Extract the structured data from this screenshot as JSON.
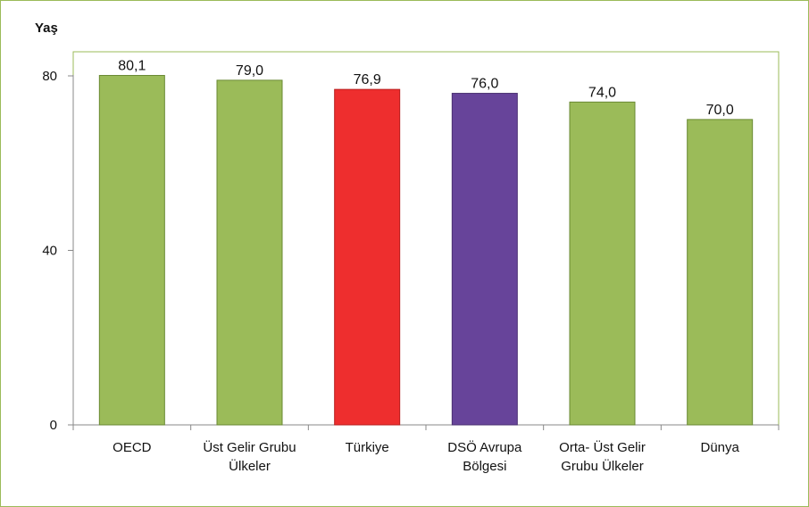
{
  "chart_data": {
    "type": "bar",
    "ylabel": "Yaş",
    "ylim": [
      0,
      80
    ],
    "yticks": [
      "0",
      "40",
      "80"
    ],
    "categories": [
      [
        "OECD"
      ],
      [
        "Üst Gelir Grubu",
        "Ülkeler"
      ],
      [
        "Türkiye"
      ],
      [
        "DSÖ Avrupa",
        "Bölgesi"
      ],
      [
        "Orta- Üst Gelir",
        "Grubu Ülkeler"
      ],
      [
        "Dünya"
      ]
    ],
    "values": [
      80.1,
      79.0,
      76.9,
      76.0,
      74.0,
      70.0
    ],
    "data_labels": [
      "80,1",
      "79,0",
      "76,9",
      "76,0",
      "74,0",
      "70,0"
    ],
    "colors": [
      "#9bbb59",
      "#9bbb59",
      "#ee2e2e",
      "#67449a",
      "#9bbb59",
      "#9bbb59"
    ],
    "edge_colors": [
      "#6a8a33",
      "#6a8a33",
      "#b81f1f",
      "#4b3072",
      "#6a8a33",
      "#6a8a33"
    ],
    "axis_color": "#888888",
    "plot_border_color": "#9bbb59",
    "grid": false
  }
}
